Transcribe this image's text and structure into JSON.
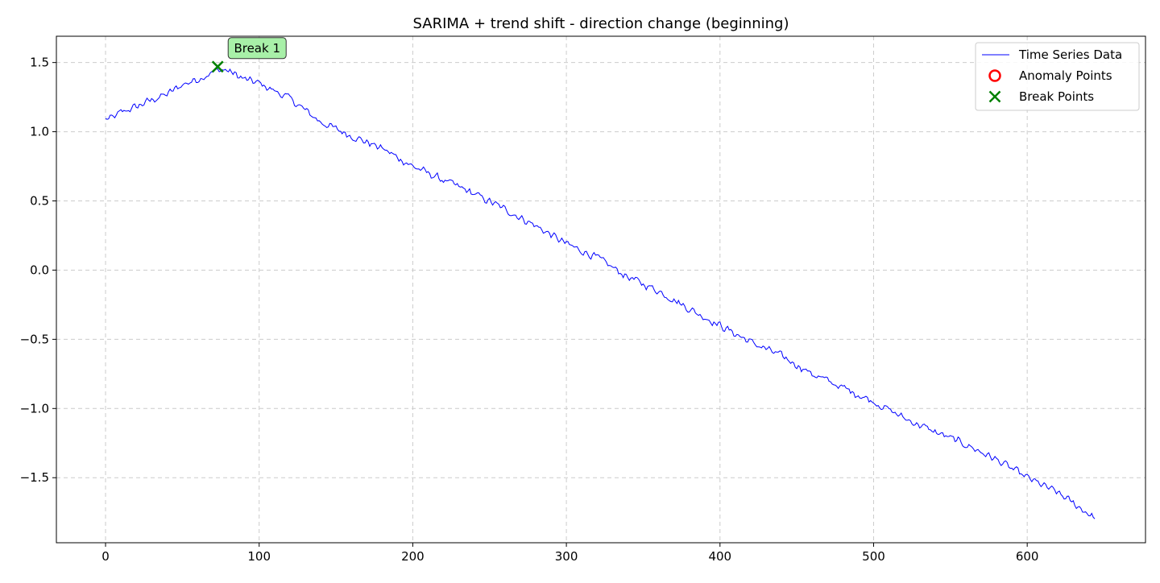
{
  "chart_data": {
    "type": "line",
    "title": "SARIMA + trend shift - direction change (beginning)",
    "xlabel": "",
    "ylabel": "",
    "xlim": [
      -32,
      677
    ],
    "ylim": [
      -1.97,
      1.69
    ],
    "x_ticks": [
      0,
      100,
      200,
      300,
      400,
      500,
      600
    ],
    "y_ticks": [
      1.5,
      1.0,
      0.5,
      0.0,
      -0.5,
      -1.0,
      -1.5
    ],
    "x_tick_labels": [
      "0",
      "100",
      "200",
      "300",
      "400",
      "500",
      "600"
    ],
    "y_tick_labels": [
      "1.5",
      "1.0",
      "0.5",
      "0.0",
      "−0.5",
      "−1.0",
      "−1.5"
    ],
    "grid": true,
    "legend_position": "top-right",
    "colors": {
      "series": "#0000ff",
      "anomaly": "#ff0000",
      "break": "#008000",
      "annotation_bg": "#a8f0a8",
      "grid": "#cccccc"
    },
    "series": [
      {
        "name": "Time Series Data",
        "n_points": 645,
        "anchors": [
          [
            0,
            1.09
          ],
          [
            5,
            1.1
          ],
          [
            10,
            1.14
          ],
          [
            20,
            1.18
          ],
          [
            30,
            1.23
          ],
          [
            40,
            1.27
          ],
          [
            50,
            1.34
          ],
          [
            60,
            1.38
          ],
          [
            70,
            1.43
          ],
          [
            75,
            1.45
          ],
          [
            80,
            1.44
          ],
          [
            90,
            1.38
          ],
          [
            100,
            1.35
          ],
          [
            120,
            1.24
          ],
          [
            140,
            1.07
          ],
          [
            160,
            0.97
          ],
          [
            180,
            0.88
          ],
          [
            200,
            0.75
          ],
          [
            220,
            0.65
          ],
          [
            240,
            0.55
          ],
          [
            260,
            0.44
          ],
          [
            280,
            0.32
          ],
          [
            300,
            0.19
          ],
          [
            320,
            0.09
          ],
          [
            340,
            -0.05
          ],
          [
            360,
            -0.15
          ],
          [
            380,
            -0.28
          ],
          [
            400,
            -0.4
          ],
          [
            420,
            -0.52
          ],
          [
            440,
            -0.62
          ],
          [
            460,
            -0.75
          ],
          [
            480,
            -0.85
          ],
          [
            500,
            -0.95
          ],
          [
            520,
            -1.07
          ],
          [
            540,
            -1.17
          ],
          [
            560,
            -1.26
          ],
          [
            580,
            -1.37
          ],
          [
            600,
            -1.5
          ],
          [
            620,
            -1.61
          ],
          [
            644,
            -1.79
          ]
        ],
        "noise_amplitude": 0.035
      }
    ],
    "anomaly_points": [],
    "break_points": [
      {
        "x": 73,
        "y": 1.47,
        "label": "Break 1"
      }
    ],
    "legend": [
      {
        "label": "Time Series Data",
        "marker": "line"
      },
      {
        "label": "Anomaly Points",
        "marker": "circle"
      },
      {
        "label": "Break Points",
        "marker": "x"
      }
    ]
  }
}
